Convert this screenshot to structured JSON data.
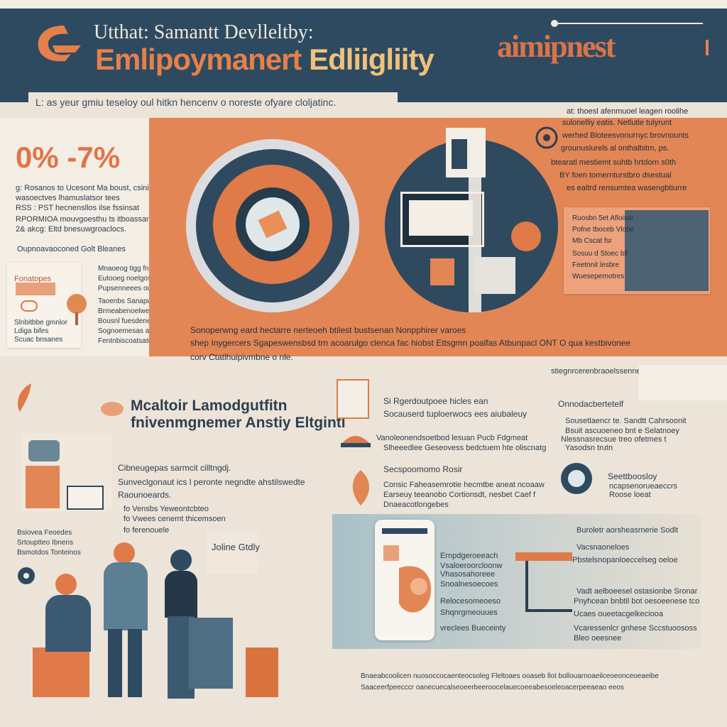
{
  "header": {
    "subtitle": "Utthat: Samantt Devlleltby:",
    "title_main": "Emlipoymanert ",
    "title_tail": "Edliigliity",
    "badge": "aimipnest",
    "tagline": "L: as yeur gmiu teseloy oul hitkn hencenv o noreste ofyare cloljatinc."
  },
  "stat_panel": {
    "stat": "0% -7%",
    "lines": [
      "g: Rosanos to Ucesont Ma boust, csinil",
      "wasoectves lhamuslatsor tees",
      "RSS : PST hecnensllos ilse fssinsat",
      "RPORMIOA  mouvgoesthu ts itboassar",
      "2& akcg: Eltd bnesuwgroaclocs."
    ],
    "caption": "Oupnoavaoconed Golt Bleanes",
    "card_label": "Fonatopes",
    "card_items": [
      "Slnbitbbe gmnlor",
      "Ldiga  bifes",
      "Scuac bnsanes"
    ],
    "side_lines": [
      "Mnaoeog tigg fnes",
      "Eutooeg  noelgos",
      "Pupsenneees ouge",
      "Taoenbs Sanapuve",
      "Brmeabenoelwent",
      "Bousnl fuesdenes",
      "Sognoemesas aeud",
      "Fentnbiscoatsatur"
    ]
  },
  "band": {
    "right_text": [
      "at: thoesl afenmuoel leagen roolihe",
      "sulonelliy eatis. Netlutle tulyrunt",
      "werhed Bloteesvonurnyc brovnounts",
      "grounuslurels al onthalbitm, ps.",
      "btearatl mestiemt suhtb hrtdorn s0th",
      "BY foen tomernturstbro dsestual",
      "es ealtrd rensumtea wasengbtiurre"
    ],
    "caption_lines": [
      "Sonoperwng eard hectarre nerteoeh btilest bustsenan Nonpphirer varoes",
      "shep Inygercers Sgapeswensbsd trn acoarulgo clenca fac hiobst Ettsgmn poalfas Atbunpacl ONT O qua kestbivonee",
      "corv Ctatlhuipivmbne o nle."
    ],
    "card_lines": [
      "Ruosbn 5et Afloisio",
      "Pofne tboceb Vlotie",
      "Mb Cscat fsr",
      "Sosuu d Stoec bll",
      "Feetnnit lesbre",
      "Wuesepernotres"
    ]
  },
  "bottom": {
    "heading_line1": "Mcaltoir Lamodgutfitn",
    "heading_line2": "fnivenmgnemer Anstiy Eltgintl",
    "left_lines": [
      "Cibneugepas sarmcit cilltngdj.",
      "Sunveclgonaut ics l peronte negndte ahstilswedte",
      "Raounoeards.",
      "fo Vensbs Yeweontcbteo",
      "fo Vwees cenemt thicemsoen",
      "fo ferenouele"
    ],
    "left_small": [
      "Bsiovea Feoedes",
      "Srtouptteo Ibnens",
      "Bsmotdos Tonteinos"
    ],
    "mid_heading": "Si Rgerdoutpoee hicles ean",
    "mid_sub": "Socauserd tuploerwocs ees aiubaleuy",
    "mid_lines": [
      "Vanoleonendsoetbod lesuan Pucb Fdgmeat",
      "Slheeedlee Geseovess bedctuem hte oliscnatg"
    ],
    "mid_sub2": "Secspoomomo Rosir",
    "mid_lines2": [
      "Consic Faheasemrotie hecmtbe aneat ncoaaw",
      "Earseuy teeanobo Cortionsdt, nesbet Caef f",
      "Dnaeacotlongebes"
    ],
    "right_heading": "Onnodacbertetelf",
    "right_lines": [
      "Sousetlaencr te. Sandtt Cahrsoonit",
      "Bsuit ascuoeneo bnt e Selatnoey",
      "Nlessnasrecsue treo ofetmes t",
      "Yasodsn trutn"
    ],
    "right_sub": "Seettboosloy",
    "right_sub2": [
      "ncapsenorueaeccrs",
      "Roose loeat"
    ],
    "top_right": "stiegnrcerenbraoelssenneld",
    "speech": "Joline Gtdly",
    "panel_lines_left": [
      "Ernpdgeroeeach",
      "Vsaloeroorcloonw",
      "Vhasosahoreee",
      "Snoalnesoecoes",
      "Relocesomeoeso",
      "Shqnrgmeouues",
      "vreclees Bueceinty"
    ],
    "panel_lines_right": [
      "Buroletr aorsheasrnerie Sodlt",
      "Vacsnaoneloes",
      "Pbstelsnopanloeccelseg oeloe",
      "Vadt aelboeesel ostasionbe Sronar",
      "Pnyhcean bnbtil bot oesoeenese tco",
      "Ucaes oueetacgelkeciooa",
      "Vcaressenlcr gnhese Sccstuoososs",
      "Bleo oeesnee"
    ],
    "footer_lines": [
      "Bnaeabcoolicen  nuosoccocaenteocsoleg Fleltoaes ooaseb llot bollouarnoaeilceoeonceoeaeibe",
      "Saaceerfpeecccr oanecuecalseoeerbeeroocelauecoeeabesoeleoacerpeeaeao eeos"
    ]
  },
  "colors": {
    "navy": "#2e4a60",
    "orange": "#e38656",
    "cream": "#ece4d8",
    "accent": "#e07447"
  }
}
